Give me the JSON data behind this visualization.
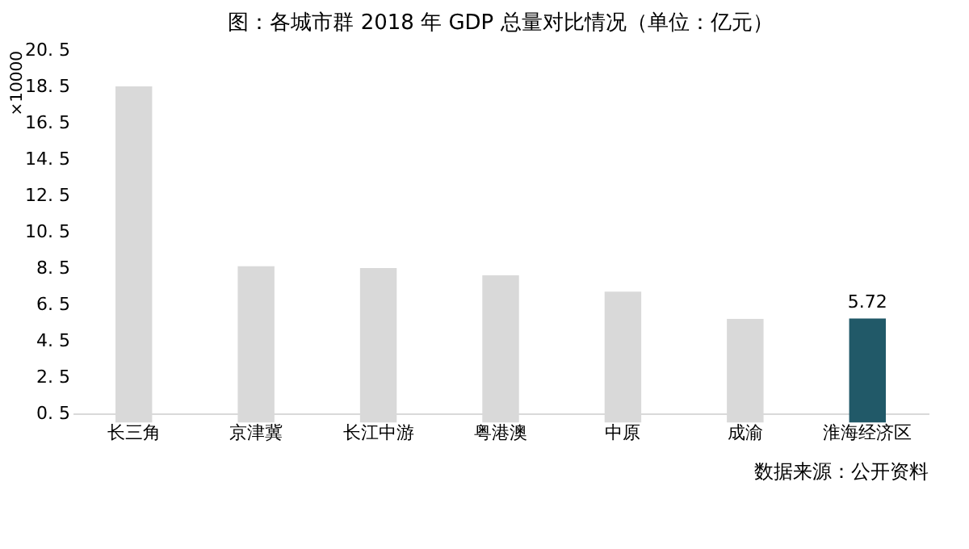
{
  "chart_data": {
    "type": "bar",
    "title": "图：各城市群 2018 年 GDP 总量对比情况（单位：亿元）",
    "ylabel": "×10000",
    "categories": [
      "长三角",
      "京津冀",
      "长江中游",
      "粤港澳",
      "中原",
      "成渝",
      "淮海经济区"
    ],
    "values": [
      18.5,
      8.6,
      8.5,
      8.1,
      7.2,
      5.7,
      5.72
    ],
    "colors": [
      "#d9d9d9",
      "#d9d9d9",
      "#d9d9d9",
      "#d9d9d9",
      "#d9d9d9",
      "#d9d9d9",
      "#215968"
    ],
    "value_labels": [
      null,
      null,
      null,
      null,
      null,
      null,
      "5.72"
    ],
    "ylim": [
      0.5,
      20.5
    ],
    "yticks": [
      0.5,
      2.5,
      4.5,
      6.5,
      8.5,
      10.5,
      12.5,
      14.5,
      16.5,
      18.5,
      20.5
    ],
    "grid": false,
    "annotations": [
      "数据来源：公开资料"
    ]
  }
}
